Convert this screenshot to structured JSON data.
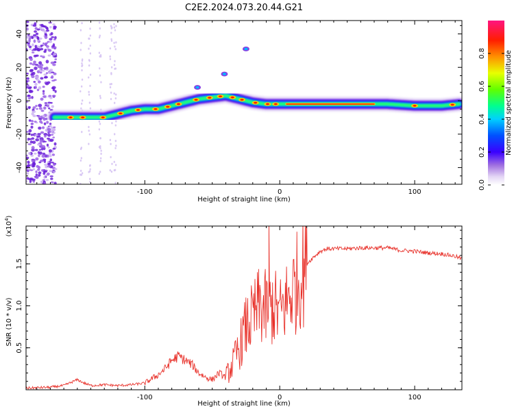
{
  "figure": {
    "title": "C2E2.2024.073.20.44.G21"
  },
  "chart_data": [
    {
      "type": "heatmap",
      "xlabel": "Height of straight line (km)",
      "ylabel": "Frequency (Hz)",
      "xlim": [
        -188,
        135
      ],
      "ylim": [
        -50,
        48
      ],
      "x_ticks": [
        -100,
        0,
        100
      ],
      "y_ticks": [
        -40,
        -20,
        0,
        20,
        40
      ],
      "colorbar": {
        "label": "Normalized spectral amplitude",
        "range": [
          0,
          1
        ],
        "ticks": [
          "0.0",
          "0.2",
          "0.4",
          "0.6",
          "0.8"
        ],
        "colormap": [
          "#ffffff",
          "#d8c8f0",
          "#8a2be2",
          "#3a00ff",
          "#0000ff",
          "#00c8ff",
          "#00ff80",
          "#66ff00",
          "#ffff00",
          "#ff8c00",
          "#ff0000",
          "#ff1493"
        ]
      },
      "ridge": {
        "x": [
          -167,
          -160,
          -150,
          -140,
          -130,
          -120,
          -110,
          -100,
          -90,
          -80,
          -70,
          -60,
          -50,
          -40,
          -30,
          -20,
          -10,
          0,
          10,
          20,
          40,
          60,
          80,
          100,
          120,
          133
        ],
        "frequency": [
          -10,
          -10,
          -10,
          -10,
          -10,
          -8,
          -6,
          -5,
          -5,
          -3,
          -1,
          1,
          2,
          3,
          1,
          -1,
          -2,
          -2,
          -2,
          -2,
          -2,
          -2,
          -2,
          -3,
          -3,
          -2
        ]
      },
      "isolated_features": [
        {
          "x": -61,
          "frequency": 8
        },
        {
          "x": -41,
          "frequency": 16
        },
        {
          "x": -25,
          "frequency": 31
        }
      ]
    },
    {
      "type": "line",
      "xlabel": "Height of straight line (km)",
      "ylabel": "SNR (10 * v/v)",
      "y_multiplier": "(x10",
      "y_multiplier_exp": "4",
      "xlim": [
        -188,
        135
      ],
      "ylim": [
        0,
        1.95
      ],
      "x_ticks": [
        -100,
        0,
        100
      ],
      "y_ticks": [
        "0.5",
        "1.0",
        "1.5"
      ],
      "line_color": "#e8312a",
      "series": [
        {
          "x": [
            -188,
            -170,
            -160,
            -150,
            -145,
            -140,
            -130,
            -120,
            -110,
            -100,
            -95,
            -90,
            -85,
            -80,
            -75,
            -70,
            -65,
            -60,
            -55,
            -50,
            -45,
            -40,
            -35,
            -30,
            -25,
            -20,
            -15,
            -10,
            -5,
            0,
            5,
            10,
            15,
            20,
            25,
            30,
            35,
            40,
            50,
            60,
            70,
            80,
            90,
            100,
            110,
            120,
            130,
            135
          ],
          "values": [
            0.02,
            0.03,
            0.05,
            0.12,
            0.08,
            0.05,
            0.06,
            0.05,
            0.06,
            0.08,
            0.13,
            0.18,
            0.25,
            0.35,
            0.4,
            0.35,
            0.3,
            0.2,
            0.15,
            0.12,
            0.2,
            0.15,
            0.3,
            0.5,
            0.75,
            0.85,
            1.0,
            0.95,
            1.0,
            0.9,
            1.05,
            1.2,
            1.35,
            1.5,
            1.58,
            1.65,
            1.68,
            1.68,
            1.68,
            1.69,
            1.69,
            1.69,
            1.66,
            1.65,
            1.63,
            1.62,
            1.59,
            1.56
          ]
        }
      ]
    }
  ]
}
